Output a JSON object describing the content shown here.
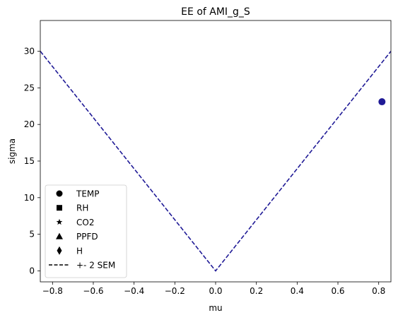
{
  "chart_data": {
    "type": "scatter",
    "title": "EE of AMI_g_S",
    "xlabel": "mu",
    "ylabel": "sigma",
    "xlim": [
      -0.86,
      0.86
    ],
    "ylim": [
      -1.5,
      34.2
    ],
    "xticks": [
      -0.8,
      -0.6,
      -0.4,
      -0.2,
      0.0,
      0.2,
      0.4,
      0.6,
      0.8
    ],
    "xtick_labels": [
      "−0.8",
      "−0.6",
      "−0.4",
      "−0.2",
      "0.0",
      "0.2",
      "0.4",
      "0.6",
      "0.8"
    ],
    "yticks": [
      0,
      5,
      10,
      15,
      20,
      25,
      30
    ],
    "ytick_labels": [
      "0",
      "5",
      "10",
      "15",
      "20",
      "25",
      "30"
    ],
    "grid": false,
    "series": [
      {
        "name": "TEMP",
        "marker": "circle",
        "color": "#1f1a96",
        "points": [
          [
            0.816,
            23.1
          ]
        ]
      }
    ],
    "sem_lines": {
      "name": "+- 2 SEM",
      "style": "dashed",
      "color": "#1f1a96",
      "x": [
        -0.86,
        0.0,
        0.86
      ],
      "y": [
        30.0,
        0.0,
        30.0
      ]
    },
    "legend": {
      "placement": "lower-left",
      "entries": [
        {
          "label": "TEMP",
          "marker": "circle"
        },
        {
          "label": "RH",
          "marker": "square"
        },
        {
          "label": "CO2",
          "marker": "star"
        },
        {
          "label": "PPFD",
          "marker": "triangle"
        },
        {
          "label": "H",
          "marker": "diamond"
        },
        {
          "label": "+- 2 SEM",
          "marker": "dashed-line"
        }
      ]
    }
  }
}
